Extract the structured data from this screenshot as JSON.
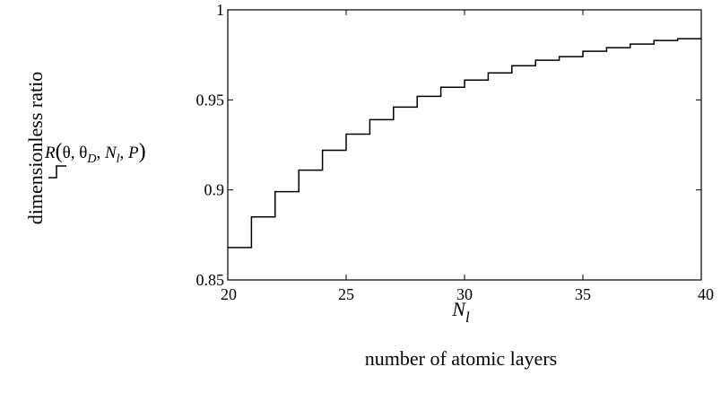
{
  "chart_data": {
    "type": "line",
    "step": true,
    "title": "",
    "xlabel": "number of atomic layers",
    "xvar": "N_l",
    "ylabel": "dimensionless ratio",
    "legend": {
      "label": "R(θ, θ_D, N_l, P)",
      "placement": "left"
    },
    "xlim": [
      20,
      40
    ],
    "ylim": [
      0.85,
      1
    ],
    "x_ticks": [
      20,
      25,
      30,
      35,
      40
    ],
    "y_ticks": [
      0.85,
      0.9,
      0.95,
      1
    ],
    "y_tick_labels": [
      "0.85",
      "0.9",
      "0.95",
      "1"
    ],
    "grid": false,
    "series": [
      {
        "x": [
          20,
          21,
          22,
          23,
          24,
          25,
          26,
          27,
          28,
          29,
          30,
          31,
          32,
          33,
          34,
          35,
          36,
          37,
          38,
          39,
          40
        ],
        "y": [
          0.868,
          0.885,
          0.899,
          0.911,
          0.922,
          0.931,
          0.939,
          0.946,
          0.952,
          0.957,
          0.961,
          0.965,
          0.969,
          0.972,
          0.974,
          0.977,
          0.979,
          0.981,
          0.983,
          0.984,
          0.984
        ]
      }
    ]
  }
}
